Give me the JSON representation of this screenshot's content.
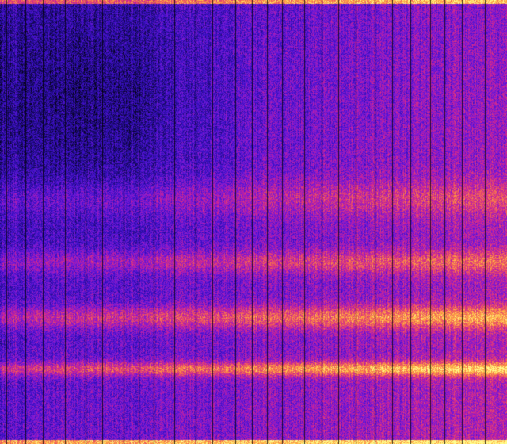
{
  "image": {
    "kind": "spectrogram-like heatmap",
    "colormap": [
      "#000000",
      "#1a0a6e",
      "#3a10c8",
      "#7a1ad8",
      "#c8209a",
      "#f05a5a",
      "#ffb040",
      "#ffff90"
    ]
  }
}
